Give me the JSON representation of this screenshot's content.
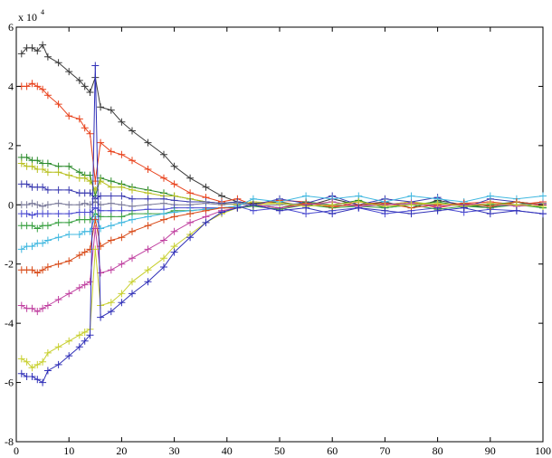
{
  "chart_data": {
    "type": "line",
    "title": "",
    "xlabel": "",
    "ylabel": "",
    "xlim": [
      0,
      100
    ],
    "ylim": [
      -8,
      6
    ],
    "y_multiplier_label": "x 10",
    "y_multiplier_exponent": "4",
    "marker": "+",
    "grid": false,
    "legend": "none",
    "x_ticks": [
      "0",
      "10",
      "20",
      "30",
      "40",
      "50",
      "60",
      "70",
      "80",
      "90",
      "100"
    ],
    "y_ticks": [
      "-8",
      "-6",
      "-4",
      "-2",
      "0",
      "2",
      "4",
      "6"
    ],
    "x": [
      1,
      2,
      3,
      4,
      5,
      6,
      8,
      10,
      12,
      13,
      14,
      15,
      16,
      18,
      20,
      22,
      25,
      28,
      30,
      33,
      36,
      39,
      42,
      45,
      50,
      55,
      60,
      65,
      70,
      75,
      80,
      85,
      90,
      95,
      100
    ],
    "series": [
      {
        "color": "#3a3a3a",
        "values": [
          5.1,
          5.3,
          5.3,
          5.2,
          5.4,
          5.0,
          4.8,
          4.5,
          4.2,
          4.0,
          3.8,
          4.3,
          3.3,
          3.2,
          2.8,
          2.5,
          2.1,
          1.7,
          1.3,
          0.9,
          0.6,
          0.3,
          0.1,
          0.05,
          0.1,
          -0.05,
          0.2,
          0.0,
          0.1,
          -0.1,
          0.15,
          0.0,
          -0.1,
          0.1,
          0.0
        ]
      },
      {
        "color": "#e8401a",
        "values": [
          4.0,
          4.0,
          4.1,
          4.0,
          3.9,
          3.7,
          3.4,
          3.0,
          2.9,
          2.6,
          2.4,
          0.8,
          2.1,
          1.8,
          1.7,
          1.5,
          1.2,
          0.9,
          0.7,
          0.4,
          0.25,
          0.1,
          0.2,
          0.0,
          0.15,
          0.1,
          -0.1,
          0.1,
          0.0,
          0.1,
          -0.1,
          0.05,
          0.1,
          0.0,
          0.1
        ]
      },
      {
        "color": "#2a8a2a",
        "values": [
          1.6,
          1.6,
          1.5,
          1.5,
          1.4,
          1.4,
          1.3,
          1.3,
          1.1,
          1.0,
          1.0,
          0.3,
          0.9,
          0.8,
          0.7,
          0.6,
          0.5,
          0.4,
          0.3,
          0.2,
          0.1,
          0.05,
          0.1,
          0.0,
          -0.1,
          0.1,
          0.0,
          0.15,
          -0.1,
          0.0,
          0.1,
          -0.05,
          0.0,
          0.1,
          -0.1
        ]
      },
      {
        "color": "#b8c020",
        "values": [
          1.4,
          1.3,
          1.3,
          1.2,
          1.2,
          1.1,
          1.1,
          1.0,
          0.9,
          0.9,
          0.8,
          0.5,
          0.8,
          0.6,
          0.6,
          0.5,
          0.4,
          0.3,
          0.3,
          0.2,
          0.1,
          0.05,
          0.0,
          0.1,
          0.05,
          0.0,
          0.1,
          -0.05,
          0.0,
          0.1,
          0.0,
          0.05,
          -0.05,
          0.0,
          0.05
        ]
      },
      {
        "color": "#3a3ab0",
        "values": [
          0.7,
          0.7,
          0.6,
          0.6,
          0.6,
          0.5,
          0.5,
          0.5,
          0.4,
          0.4,
          0.4,
          0.2,
          0.3,
          0.3,
          0.3,
          0.2,
          0.2,
          0.2,
          0.15,
          0.1,
          0.1,
          0.05,
          0.1,
          0.0,
          0.2,
          0.05,
          0.3,
          0.0,
          0.2,
          0.1,
          0.25,
          -0.1,
          0.2,
          0.1,
          0.0
        ]
      },
      {
        "color": "#7a7a9a",
        "values": [
          0.0,
          0.0,
          0.05,
          0.0,
          -0.05,
          0.0,
          0.05,
          0.0,
          0.0,
          0.05,
          0.0,
          0.1,
          0.0,
          0.05,
          0.0,
          -0.05,
          0.0,
          0.05,
          0.0,
          0.0,
          0.05,
          0.0,
          0.05,
          -0.05,
          0.0,
          0.05,
          0.0,
          -0.05,
          0.05,
          0.0,
          0.0,
          0.05,
          -0.05,
          0.0,
          0.05
        ]
      },
      {
        "color": "#4a4ad0",
        "values": [
          -0.3,
          -0.3,
          -0.35,
          -0.3,
          -0.3,
          -0.3,
          -0.3,
          -0.3,
          -0.25,
          -0.25,
          -0.25,
          -0.1,
          -0.2,
          -0.2,
          -0.2,
          -0.2,
          -0.15,
          -0.15,
          -0.1,
          -0.1,
          -0.1,
          -0.1,
          -0.05,
          -0.2,
          -0.1,
          -0.3,
          -0.2,
          -0.1,
          -0.3,
          -0.2,
          -0.1,
          -0.25,
          -0.15,
          -0.2,
          -0.3
        ]
      },
      {
        "color": "#38a040",
        "values": [
          -0.7,
          -0.7,
          -0.7,
          -0.8,
          -0.7,
          -0.7,
          -0.6,
          -0.6,
          -0.5,
          -0.5,
          -0.5,
          -0.3,
          -0.4,
          -0.4,
          -0.4,
          -0.3,
          -0.3,
          -0.3,
          -0.2,
          -0.2,
          -0.15,
          -0.1,
          -0.1,
          -0.05,
          -0.15,
          0.0,
          -0.1,
          -0.05,
          -0.1,
          0.0,
          -0.15,
          -0.05,
          -0.1,
          0.0,
          -0.1
        ]
      },
      {
        "color": "#40b8e0",
        "values": [
          -1.5,
          -1.4,
          -1.4,
          -1.3,
          -1.3,
          -1.2,
          -1.1,
          -1.0,
          -1.0,
          -0.9,
          -0.9,
          -0.4,
          -0.8,
          -0.7,
          -0.6,
          -0.5,
          -0.4,
          -0.3,
          -0.25,
          -0.2,
          -0.15,
          -0.1,
          -0.05,
          0.2,
          0.1,
          0.3,
          0.2,
          0.3,
          0.1,
          0.3,
          0.2,
          0.1,
          0.3,
          0.2,
          0.3
        ]
      },
      {
        "color": "#d84a18",
        "values": [
          -2.2,
          -2.2,
          -2.2,
          -2.3,
          -2.2,
          -2.1,
          -2.0,
          -1.9,
          -1.7,
          -1.6,
          -1.5,
          -0.5,
          -1.4,
          -1.2,
          -1.1,
          -0.9,
          -0.7,
          -0.5,
          -0.4,
          -0.3,
          -0.2,
          -0.1,
          -0.1,
          0.0,
          -0.1,
          0.05,
          -0.05,
          0.0,
          0.05,
          -0.1,
          0.0,
          0.05,
          -0.05,
          0.1,
          0.0
        ]
      },
      {
        "color": "#c040a0",
        "values": [
          -3.4,
          -3.5,
          -3.5,
          -3.6,
          -3.5,
          -3.4,
          -3.2,
          -3.0,
          -2.8,
          -2.7,
          -2.6,
          -0.8,
          -2.3,
          -2.2,
          -2.0,
          -1.8,
          -1.5,
          -1.2,
          -0.9,
          -0.6,
          -0.4,
          -0.2,
          -0.1,
          0.0,
          -0.1,
          0.0,
          0.1,
          -0.05,
          0.0,
          0.05,
          -0.05,
          0.0,
          0.05,
          -0.05,
          0.0
        ]
      },
      {
        "color": "#c8d030",
        "values": [
          -5.2,
          -5.3,
          -5.5,
          -5.4,
          -5.3,
          -5.0,
          -4.8,
          -4.6,
          -4.4,
          -4.3,
          -4.2,
          -1.5,
          -3.4,
          -3.3,
          -3.0,
          -2.6,
          -2.2,
          -1.8,
          -1.4,
          -1.0,
          -0.6,
          -0.3,
          -0.1,
          0.0,
          0.05,
          -0.05,
          0.0,
          0.1,
          -0.05,
          0.0,
          0.05,
          -0.05,
          0.05,
          0.0,
          -0.05
        ]
      },
      {
        "color": "#3030b8",
        "values": [
          -5.7,
          -5.8,
          -5.8,
          -5.9,
          -6.0,
          -5.6,
          -5.4,
          -5.1,
          -4.8,
          -4.6,
          -4.4,
          4.7,
          -3.8,
          -3.6,
          -3.3,
          -3.0,
          -2.6,
          -2.1,
          -1.6,
          -1.1,
          -0.6,
          -0.25,
          -0.1,
          0.0,
          -0.2,
          -0.1,
          -0.3,
          -0.1,
          -0.2,
          -0.3,
          -0.2,
          -0.1,
          -0.3,
          -0.2,
          -0.3
        ]
      }
    ]
  }
}
